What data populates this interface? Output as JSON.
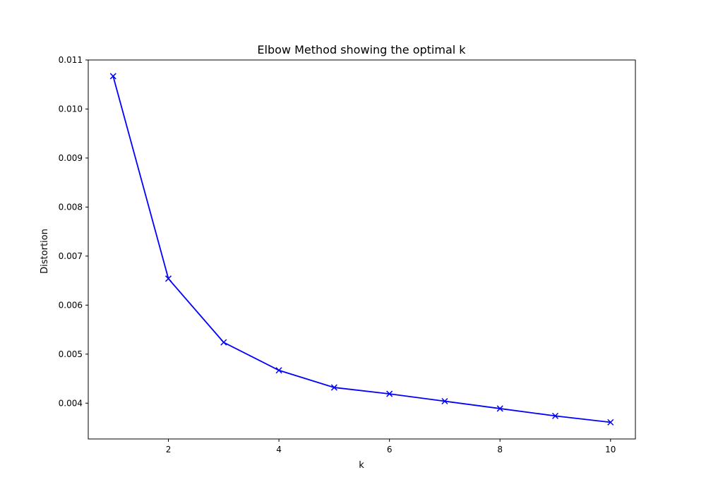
{
  "chart_data": {
    "type": "line",
    "title": "Elbow Method showing the optimal k",
    "xlabel": "k",
    "ylabel": "Distortion",
    "x": [
      1,
      2,
      3,
      4,
      5,
      6,
      7,
      8,
      9,
      10
    ],
    "series": [
      {
        "values": [
          0.01067,
          0.00654,
          0.00524,
          0.00467,
          0.00432,
          0.00419,
          0.00404,
          0.00389,
          0.00374,
          0.00361
        ],
        "color": "#0000ff",
        "marker": "x"
      }
    ],
    "xlim": [
      0.55,
      10.45
    ],
    "ylim": [
      0.00327,
      0.011
    ],
    "xticks": [
      2,
      4,
      6,
      8,
      10
    ],
    "xtick_labels": [
      "2",
      "4",
      "6",
      "8",
      "10"
    ],
    "yticks": [
      0.004,
      0.005,
      0.006,
      0.007,
      0.008,
      0.009,
      0.01,
      0.011
    ],
    "ytick_labels": [
      "0.004",
      "0.005",
      "0.006",
      "0.007",
      "0.008",
      "0.009",
      "0.010",
      "0.011"
    ],
    "grid": false,
    "legend": false
  }
}
